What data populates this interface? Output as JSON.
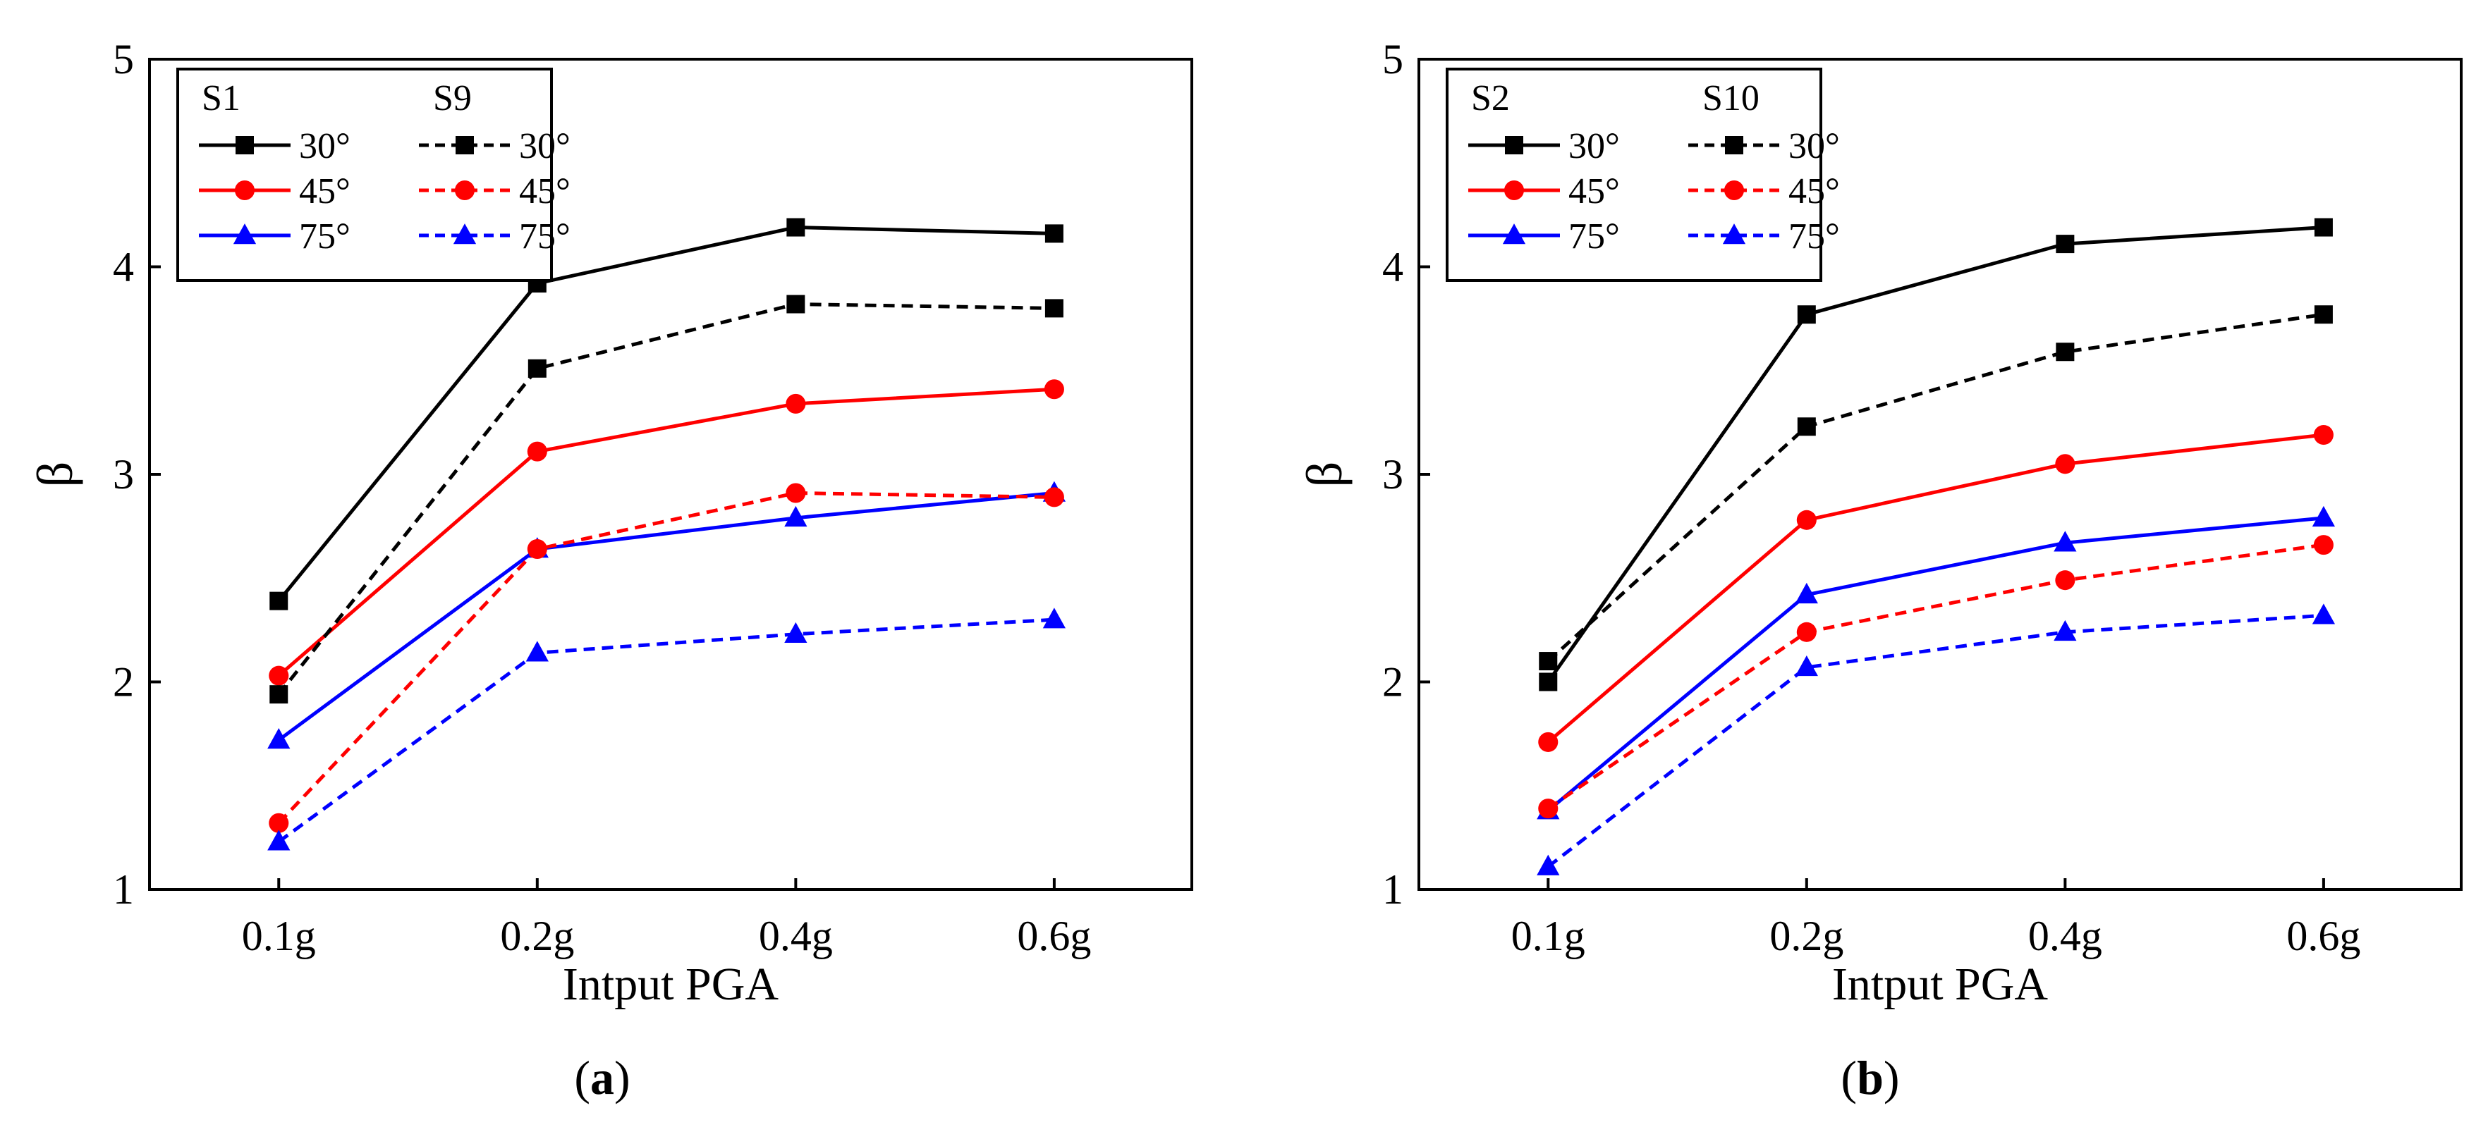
{
  "colors": {
    "black": "#000000",
    "red": "#ff0000",
    "blue": "#0000ff"
  },
  "chart_data": [
    {
      "type": "line",
      "panel_label": {
        "open": "(",
        "letter": "a",
        "close": ")"
      },
      "xlabel": "Intput PGA",
      "ylabel": "β",
      "ylim": [
        1,
        5
      ],
      "yticks": [
        "1",
        "2",
        "3",
        "4",
        "5"
      ],
      "categories": [
        "0.1g",
        "0.2g",
        "0.4g",
        "0.6g"
      ],
      "legend": {
        "placement": "top-left",
        "group_headers": [
          "S1",
          "S9"
        ],
        "angle_labels": [
          "30°",
          "45°",
          "75°"
        ]
      },
      "series": [
        {
          "name": "S1 30°",
          "group": "S1",
          "angle": "30°",
          "color": "#000000",
          "marker": "square",
          "dashed": false,
          "values": [
            2.39,
            3.92,
            4.19,
            4.16
          ]
        },
        {
          "name": "S1 45°",
          "group": "S1",
          "angle": "45°",
          "color": "#ff0000",
          "marker": "circle",
          "dashed": false,
          "values": [
            2.03,
            3.11,
            3.34,
            3.41
          ]
        },
        {
          "name": "S1 75°",
          "group": "S1",
          "angle": "75°",
          "color": "#0000ff",
          "marker": "triangle",
          "dashed": false,
          "values": [
            1.72,
            2.64,
            2.79,
            2.91
          ]
        },
        {
          "name": "S9 30°",
          "group": "S9",
          "angle": "30°",
          "color": "#000000",
          "marker": "square",
          "dashed": true,
          "values": [
            1.94,
            3.51,
            3.82,
            3.8
          ]
        },
        {
          "name": "S9 45°",
          "group": "S9",
          "angle": "45°",
          "color": "#ff0000",
          "marker": "circle",
          "dashed": true,
          "values": [
            1.32,
            2.64,
            2.91,
            2.89
          ]
        },
        {
          "name": "S9 75°",
          "group": "S9",
          "angle": "75°",
          "color": "#0000ff",
          "marker": "triangle",
          "dashed": true,
          "values": [
            1.23,
            2.14,
            2.23,
            2.3
          ]
        }
      ]
    },
    {
      "type": "line",
      "panel_label": {
        "open": "(",
        "letter": "b",
        "close": ")"
      },
      "xlabel": "Intput PGA",
      "ylabel": "β",
      "ylim": [
        1,
        5
      ],
      "yticks": [
        "1",
        "2",
        "3",
        "4",
        "5"
      ],
      "categories": [
        "0.1g",
        "0.2g",
        "0.4g",
        "0.6g"
      ],
      "legend": {
        "placement": "top-left",
        "group_headers": [
          "S2",
          "S10"
        ],
        "angle_labels": [
          "30°",
          "45°",
          "75°"
        ]
      },
      "series": [
        {
          "name": "S2 30°",
          "group": "S2",
          "angle": "30°",
          "color": "#000000",
          "marker": "square",
          "dashed": false,
          "values": [
            2.0,
            3.77,
            4.11,
            4.19
          ]
        },
        {
          "name": "S2 45°",
          "group": "S2",
          "angle": "45°",
          "color": "#ff0000",
          "marker": "circle",
          "dashed": false,
          "values": [
            1.71,
            2.78,
            3.05,
            3.19
          ]
        },
        {
          "name": "S2 75°",
          "group": "S2",
          "angle": "75°",
          "color": "#0000ff",
          "marker": "triangle",
          "dashed": false,
          "values": [
            1.38,
            2.42,
            2.67,
            2.79
          ]
        },
        {
          "name": "S10 30°",
          "group": "S10",
          "angle": "30°",
          "color": "#000000",
          "marker": "square",
          "dashed": true,
          "values": [
            2.1,
            3.23,
            3.59,
            3.77
          ]
        },
        {
          "name": "S10 45°",
          "group": "S10",
          "angle": "45°",
          "color": "#ff0000",
          "marker": "circle",
          "dashed": true,
          "values": [
            1.39,
            2.24,
            2.49,
            2.66
          ]
        },
        {
          "name": "S10 75°",
          "group": "S10",
          "angle": "75°",
          "color": "#0000ff",
          "marker": "triangle",
          "dashed": true,
          "values": [
            1.11,
            2.07,
            2.24,
            2.32
          ]
        }
      ]
    }
  ]
}
